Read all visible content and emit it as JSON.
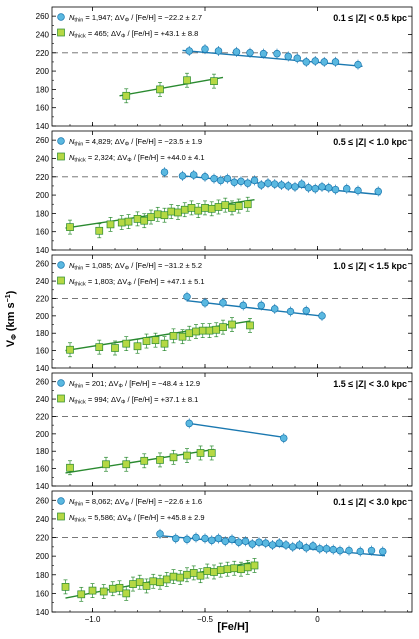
{
  "figure": {
    "xlabel": "[Fe/H]",
    "ylabel_main": "V",
    "ylabel_sub": "Φ",
    "ylabel_unit": " (km s",
    "ylabel_exp": "−1",
    "ylabel_close": ")",
    "colors": {
      "thin_fill": "#5ab8e0",
      "thin_line": "#1a78b0",
      "thick_fill": "#b5d844",
      "thick_line": "#2a8a30",
      "dashed": "#666666",
      "axis": "#000000"
    }
  },
  "chart_data": [
    {
      "type": "scatter",
      "title": "0.1 ≤ |Z| < 0.5 kpc",
      "ylim": [
        140,
        270
      ],
      "xlim": [
        -1.18,
        0.42
      ],
      "yticks": [
        140,
        160,
        180,
        200,
        220,
        240,
        260
      ],
      "xticks": [
        -1.0,
        -0.5,
        0.0
      ],
      "xticklabels": [],
      "reference_line": 220,
      "thin": {
        "legend_n": "1,947",
        "legend_fit": "−22.2 ± 2.7",
        "x": [
          -0.57,
          -0.5,
          -0.44,
          -0.36,
          -0.3,
          -0.24,
          -0.18,
          -0.13,
          -0.09,
          -0.05,
          -0.01,
          0.03,
          0.08,
          0.18
        ],
        "y": [
          222,
          224,
          222,
          221,
          220,
          219,
          219,
          216,
          214,
          210,
          211,
          210,
          210,
          207
        ],
        "fit_x": [
          -0.6,
          0.2
        ],
        "fit_y": [
          222.6,
          205.2
        ]
      },
      "thick": {
        "legend_n": "465",
        "legend_fit": "+43.1 ± 8.8",
        "x": [
          -0.85,
          -0.7,
          -0.58,
          -0.46
        ],
        "y": [
          173,
          180,
          190,
          189
        ],
        "fit_x": [
          -0.88,
          -0.42
        ],
        "fit_y": [
          173,
          193
        ]
      }
    },
    {
      "type": "scatter",
      "title": "0.5 ≤ |Z| < 1.0 kpc",
      "ylim": [
        140,
        270
      ],
      "xlim": [
        -1.18,
        0.42
      ],
      "yticks": [
        140,
        160,
        180,
        200,
        220,
        240,
        260
      ],
      "xticks": [
        -1.0,
        -0.5,
        0.0
      ],
      "xticklabels": [],
      "reference_line": 220,
      "thin": {
        "legend_n": "4,829",
        "legend_fit": "−23.5 ± 1.9",
        "x": [
          -0.68,
          -0.6,
          -0.55,
          -0.5,
          -0.46,
          -0.43,
          -0.4,
          -0.37,
          -0.34,
          -0.31,
          -0.28,
          -0.25,
          -0.22,
          -0.19,
          -0.16,
          -0.13,
          -0.1,
          -0.07,
          -0.04,
          -0.01,
          0.02,
          0.05,
          0.08,
          0.13,
          0.18,
          0.27
        ],
        "y": [
          225,
          221,
          222,
          220,
          218,
          216,
          218,
          214,
          215,
          213,
          216,
          211,
          213,
          212,
          211,
          210,
          209,
          212,
          208,
          207,
          209,
          208,
          206,
          207,
          205,
          204
        ],
        "fit_x": [
          -0.6,
          0.28
        ],
        "fit_y": [
          221,
          200.5
        ]
      },
      "thick": {
        "legend_n": "2,324",
        "legend_fit": "+44.0 ± 4.1",
        "x": [
          -1.1,
          -0.97,
          -0.92,
          -0.87,
          -0.84,
          -0.8,
          -0.77,
          -0.74,
          -0.71,
          -0.68,
          -0.65,
          -0.62,
          -0.59,
          -0.56,
          -0.53,
          -0.5,
          -0.47,
          -0.44,
          -0.41,
          -0.38,
          -0.35,
          -0.31
        ],
        "y": [
          165,
          161,
          168,
          170,
          171,
          174,
          172,
          176,
          179,
          178,
          182,
          181,
          184,
          186,
          183,
          186,
          185,
          187,
          189,
          186,
          188,
          190
        ],
        "fit_x": [
          -1.12,
          -0.28
        ],
        "fit_y": [
          164,
          195
        ]
      }
    },
    {
      "type": "scatter",
      "title": "1.0 ≤ |Z| < 1.5 kpc",
      "ylim": [
        140,
        270
      ],
      "xlim": [
        -1.18,
        0.42
      ],
      "yticks": [
        140,
        160,
        180,
        200,
        220,
        240,
        260
      ],
      "xticks": [
        -1.0,
        -0.5,
        0.0
      ],
      "xticklabels": [],
      "reference_line": 220,
      "thin": {
        "legend_n": "1,085",
        "legend_fit": "−31.2 ± 5.2",
        "x": [
          -0.58,
          -0.5,
          -0.42,
          -0.33,
          -0.25,
          -0.19,
          -0.12,
          -0.05,
          0.02
        ],
        "y": [
          222,
          215,
          215,
          212,
          212,
          208,
          205,
          206,
          200
        ],
        "fit_x": [
          -0.58,
          0.03
        ],
        "fit_y": [
          217.5,
          199.5
        ]
      },
      "thick": {
        "legend_n": "1,803",
        "legend_fit": "+47.1 ± 5.1",
        "x": [
          -1.1,
          -0.97,
          -0.9,
          -0.85,
          -0.8,
          -0.76,
          -0.72,
          -0.68,
          -0.64,
          -0.6,
          -0.57,
          -0.54,
          -0.51,
          -0.48,
          -0.45,
          -0.42,
          -0.38,
          -0.3
        ],
        "y": [
          161,
          164,
          163,
          168,
          165,
          171,
          172,
          168,
          177,
          176,
          180,
          182,
          183,
          183,
          184,
          187,
          190,
          189
        ],
        "fit_x": [
          -1.12,
          -0.3
        ],
        "fit_y": [
          160,
          194
        ]
      }
    },
    {
      "type": "scatter",
      "title": "1.5 ≤ |Z| < 3.0 kpc",
      "ylim": [
        140,
        270
      ],
      "xlim": [
        -1.18,
        0.42
      ],
      "yticks": [
        140,
        160,
        180,
        200,
        220,
        240,
        260
      ],
      "xticks": [
        -1.0,
        -0.5,
        0.0
      ],
      "xticklabels": [],
      "reference_line": 220,
      "thin": {
        "legend_n": "201",
        "legend_fit": "−48.4 ± 12.9",
        "x": [
          -0.57,
          -0.15
        ],
        "y": [
          212,
          195
        ],
        "fit_x": [
          -0.57,
          -0.15
        ],
        "fit_y": [
          212,
          196
        ]
      },
      "thick": {
        "legend_n": "994",
        "legend_fit": "+37.1 ± 8.1",
        "x": [
          -1.1,
          -0.94,
          -0.85,
          -0.77,
          -0.7,
          -0.64,
          -0.58,
          -0.52,
          -0.47
        ],
        "y": [
          161,
          165,
          165,
          169,
          170,
          173,
          175,
          178,
          178
        ],
        "fit_x": [
          -1.12,
          -0.46
        ],
        "fit_y": [
          155,
          182
        ]
      }
    },
    {
      "type": "scatter",
      "title": "0.1 ≤ |Z| < 3.0 kpc",
      "ylim": [
        140,
        270
      ],
      "xlim": [
        -1.18,
        0.42
      ],
      "yticks": [
        140,
        160,
        180,
        200,
        220,
        240,
        260
      ],
      "xticks": [
        -1.0,
        -0.5,
        0.0
      ],
      "xticklabels": [
        "−1.0",
        "−0.5",
        "0"
      ],
      "reference_line": 220,
      "thin": {
        "legend_n": "8,062",
        "legend_fit": "−22.6 ± 1.6",
        "x": [
          -0.7,
          -0.63,
          -0.58,
          -0.54,
          -0.5,
          -0.47,
          -0.44,
          -0.41,
          -0.38,
          -0.35,
          -0.32,
          -0.29,
          -0.26,
          -0.23,
          -0.2,
          -0.17,
          -0.14,
          -0.11,
          -0.08,
          -0.05,
          -0.02,
          0.01,
          0.04,
          0.07,
          0.1,
          0.14,
          0.19,
          0.24,
          0.29
        ],
        "y": [
          224,
          219,
          218,
          220,
          219,
          217,
          219,
          216,
          218,
          215,
          216,
          213,
          215,
          214,
          212,
          214,
          212,
          210,
          212,
          209,
          211,
          208,
          208,
          207,
          206,
          206,
          205,
          206,
          205
        ],
        "fit_x": [
          -0.7,
          0.3
        ],
        "fit_y": [
          222,
          200.5
        ]
      },
      "thick": {
        "legend_n": "5,586",
        "legend_fit": "+45.8 ± 2.9",
        "x": [
          -1.12,
          -1.05,
          -1.0,
          -0.95,
          -0.91,
          -0.88,
          -0.85,
          -0.82,
          -0.79,
          -0.76,
          -0.73,
          -0.7,
          -0.67,
          -0.64,
          -0.61,
          -0.58,
          -0.55,
          -0.52,
          -0.49,
          -0.46,
          -0.43,
          -0.4,
          -0.37,
          -0.34,
          -0.31,
          -0.28
        ],
        "y": [
          167,
          159,
          163,
          162,
          165,
          166,
          160,
          170,
          172,
          168,
          173,
          172,
          175,
          178,
          177,
          180,
          182,
          179,
          184,
          183,
          185,
          186,
          187,
          186,
          188,
          190
        ],
        "fit_x": [
          -1.12,
          -0.3
        ],
        "fit_y": [
          155,
          193
        ]
      }
    }
  ]
}
